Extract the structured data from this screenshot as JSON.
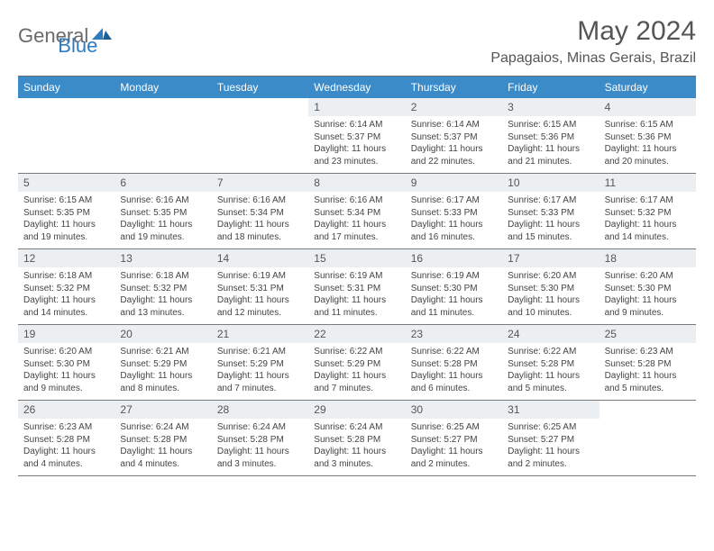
{
  "logo": {
    "general": "General",
    "blue": "Blue"
  },
  "title": "May 2024",
  "location": "Papagaios, Minas Gerais, Brazil",
  "colors": {
    "header_bg": "#3b8bc8",
    "header_text": "#ffffff",
    "daynum_bg": "#eceff1",
    "text": "#444444",
    "title_text": "#555555",
    "border": "#7a7a7a",
    "logo_gray": "#6a6a6a",
    "logo_blue": "#2f7bbf"
  },
  "dow": [
    "Sunday",
    "Monday",
    "Tuesday",
    "Wednesday",
    "Thursday",
    "Friday",
    "Saturday"
  ],
  "weeks": [
    [
      null,
      null,
      null,
      {
        "n": "1",
        "sr": "Sunrise: 6:14 AM",
        "ss": "Sunset: 5:37 PM",
        "dl": "Daylight: 11 hours and 23 minutes."
      },
      {
        "n": "2",
        "sr": "Sunrise: 6:14 AM",
        "ss": "Sunset: 5:37 PM",
        "dl": "Daylight: 11 hours and 22 minutes."
      },
      {
        "n": "3",
        "sr": "Sunrise: 6:15 AM",
        "ss": "Sunset: 5:36 PM",
        "dl": "Daylight: 11 hours and 21 minutes."
      },
      {
        "n": "4",
        "sr": "Sunrise: 6:15 AM",
        "ss": "Sunset: 5:36 PM",
        "dl": "Daylight: 11 hours and 20 minutes."
      }
    ],
    [
      {
        "n": "5",
        "sr": "Sunrise: 6:15 AM",
        "ss": "Sunset: 5:35 PM",
        "dl": "Daylight: 11 hours and 19 minutes."
      },
      {
        "n": "6",
        "sr": "Sunrise: 6:16 AM",
        "ss": "Sunset: 5:35 PM",
        "dl": "Daylight: 11 hours and 19 minutes."
      },
      {
        "n": "7",
        "sr": "Sunrise: 6:16 AM",
        "ss": "Sunset: 5:34 PM",
        "dl": "Daylight: 11 hours and 18 minutes."
      },
      {
        "n": "8",
        "sr": "Sunrise: 6:16 AM",
        "ss": "Sunset: 5:34 PM",
        "dl": "Daylight: 11 hours and 17 minutes."
      },
      {
        "n": "9",
        "sr": "Sunrise: 6:17 AM",
        "ss": "Sunset: 5:33 PM",
        "dl": "Daylight: 11 hours and 16 minutes."
      },
      {
        "n": "10",
        "sr": "Sunrise: 6:17 AM",
        "ss": "Sunset: 5:33 PM",
        "dl": "Daylight: 11 hours and 15 minutes."
      },
      {
        "n": "11",
        "sr": "Sunrise: 6:17 AM",
        "ss": "Sunset: 5:32 PM",
        "dl": "Daylight: 11 hours and 14 minutes."
      }
    ],
    [
      {
        "n": "12",
        "sr": "Sunrise: 6:18 AM",
        "ss": "Sunset: 5:32 PM",
        "dl": "Daylight: 11 hours and 14 minutes."
      },
      {
        "n": "13",
        "sr": "Sunrise: 6:18 AM",
        "ss": "Sunset: 5:32 PM",
        "dl": "Daylight: 11 hours and 13 minutes."
      },
      {
        "n": "14",
        "sr": "Sunrise: 6:19 AM",
        "ss": "Sunset: 5:31 PM",
        "dl": "Daylight: 11 hours and 12 minutes."
      },
      {
        "n": "15",
        "sr": "Sunrise: 6:19 AM",
        "ss": "Sunset: 5:31 PM",
        "dl": "Daylight: 11 hours and 11 minutes."
      },
      {
        "n": "16",
        "sr": "Sunrise: 6:19 AM",
        "ss": "Sunset: 5:30 PM",
        "dl": "Daylight: 11 hours and 11 minutes."
      },
      {
        "n": "17",
        "sr": "Sunrise: 6:20 AM",
        "ss": "Sunset: 5:30 PM",
        "dl": "Daylight: 11 hours and 10 minutes."
      },
      {
        "n": "18",
        "sr": "Sunrise: 6:20 AM",
        "ss": "Sunset: 5:30 PM",
        "dl": "Daylight: 11 hours and 9 minutes."
      }
    ],
    [
      {
        "n": "19",
        "sr": "Sunrise: 6:20 AM",
        "ss": "Sunset: 5:30 PM",
        "dl": "Daylight: 11 hours and 9 minutes."
      },
      {
        "n": "20",
        "sr": "Sunrise: 6:21 AM",
        "ss": "Sunset: 5:29 PM",
        "dl": "Daylight: 11 hours and 8 minutes."
      },
      {
        "n": "21",
        "sr": "Sunrise: 6:21 AM",
        "ss": "Sunset: 5:29 PM",
        "dl": "Daylight: 11 hours and 7 minutes."
      },
      {
        "n": "22",
        "sr": "Sunrise: 6:22 AM",
        "ss": "Sunset: 5:29 PM",
        "dl": "Daylight: 11 hours and 7 minutes."
      },
      {
        "n": "23",
        "sr": "Sunrise: 6:22 AM",
        "ss": "Sunset: 5:28 PM",
        "dl": "Daylight: 11 hours and 6 minutes."
      },
      {
        "n": "24",
        "sr": "Sunrise: 6:22 AM",
        "ss": "Sunset: 5:28 PM",
        "dl": "Daylight: 11 hours and 5 minutes."
      },
      {
        "n": "25",
        "sr": "Sunrise: 6:23 AM",
        "ss": "Sunset: 5:28 PM",
        "dl": "Daylight: 11 hours and 5 minutes."
      }
    ],
    [
      {
        "n": "26",
        "sr": "Sunrise: 6:23 AM",
        "ss": "Sunset: 5:28 PM",
        "dl": "Daylight: 11 hours and 4 minutes."
      },
      {
        "n": "27",
        "sr": "Sunrise: 6:24 AM",
        "ss": "Sunset: 5:28 PM",
        "dl": "Daylight: 11 hours and 4 minutes."
      },
      {
        "n": "28",
        "sr": "Sunrise: 6:24 AM",
        "ss": "Sunset: 5:28 PM",
        "dl": "Daylight: 11 hours and 3 minutes."
      },
      {
        "n": "29",
        "sr": "Sunrise: 6:24 AM",
        "ss": "Sunset: 5:28 PM",
        "dl": "Daylight: 11 hours and 3 minutes."
      },
      {
        "n": "30",
        "sr": "Sunrise: 6:25 AM",
        "ss": "Sunset: 5:27 PM",
        "dl": "Daylight: 11 hours and 2 minutes."
      },
      {
        "n": "31",
        "sr": "Sunrise: 6:25 AM",
        "ss": "Sunset: 5:27 PM",
        "dl": "Daylight: 11 hours and 2 minutes."
      },
      null
    ]
  ]
}
